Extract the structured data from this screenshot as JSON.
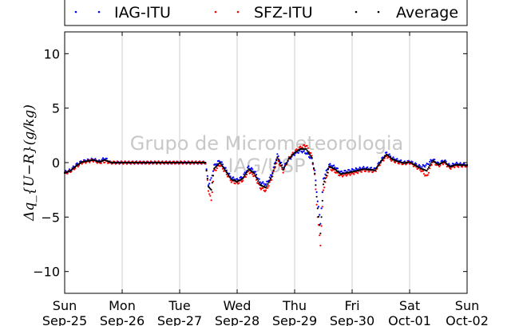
{
  "chart_data": {
    "type": "scatter",
    "ylabel": "Δq_{U−R}(g/kg)",
    "ylim": [
      -12,
      12
    ],
    "yticks": [
      -10,
      -5,
      0,
      5,
      10
    ],
    "xlim": [
      0,
      7
    ],
    "xticks": [
      {
        "day": 0,
        "weekday": "Sun",
        "date": "Sep-25"
      },
      {
        "day": 1,
        "weekday": "Mon",
        "date": "Sep-26"
      },
      {
        "day": 2,
        "weekday": "Tue",
        "date": "Sep-27"
      },
      {
        "day": 3,
        "weekday": "Wed",
        "date": "Sep-28"
      },
      {
        "day": 4,
        "weekday": "Thu",
        "date": "Sep-29"
      },
      {
        "day": 5,
        "weekday": "Fri",
        "date": "Sep-30"
      },
      {
        "day": 6,
        "weekday": "Sat",
        "date": "Oct-01"
      },
      {
        "day": 7,
        "weekday": "Sun",
        "date": "Oct-02"
      }
    ],
    "grid": "vertical",
    "legend": "top",
    "watermark": [
      "Grupo de Micrometeorologia",
      "IAG/USP"
    ],
    "series": [
      {
        "name": "IAG-ITU",
        "color": "#0000ff",
        "values": [
          [
            0.0,
            -0.9
          ],
          [
            0.1,
            -0.7
          ],
          [
            0.2,
            -0.2
          ],
          [
            0.3,
            0.1
          ],
          [
            0.4,
            0.2
          ],
          [
            0.5,
            0.3
          ],
          [
            0.6,
            0.1
          ],
          [
            0.7,
            0.4
          ],
          [
            0.8,
            0.0
          ],
          [
            0.9,
            0.0
          ],
          [
            1.5,
            0.0
          ],
          [
            2.0,
            0.0
          ],
          [
            2.45,
            0.0
          ],
          [
            2.5,
            -2.0
          ],
          [
            2.55,
            -1.5
          ],
          [
            2.6,
            -0.3
          ],
          [
            2.7,
            0.2
          ],
          [
            2.8,
            -0.6
          ],
          [
            2.9,
            -1.4
          ],
          [
            3.0,
            -1.6
          ],
          [
            3.1,
            -1.3
          ],
          [
            3.2,
            -0.4
          ],
          [
            3.3,
            -0.8
          ],
          [
            3.4,
            -1.8
          ],
          [
            3.5,
            -2.0
          ],
          [
            3.6,
            -1.1
          ],
          [
            3.7,
            0.7
          ],
          [
            3.8,
            -0.5
          ],
          [
            3.9,
            0.3
          ],
          [
            4.0,
            0.8
          ],
          [
            4.1,
            1.1
          ],
          [
            4.2,
            0.9
          ],
          [
            4.3,
            0.3
          ],
          [
            4.35,
            -0.8
          ],
          [
            4.4,
            -3.5
          ],
          [
            4.45,
            -5.5
          ],
          [
            4.5,
            -1.5
          ],
          [
            4.6,
            -0.2
          ],
          [
            4.7,
            -0.4
          ],
          [
            4.8,
            -0.9
          ],
          [
            5.0,
            -0.7
          ],
          [
            5.2,
            -0.5
          ],
          [
            5.4,
            -0.6
          ],
          [
            5.5,
            0.2
          ],
          [
            5.6,
            0.9
          ],
          [
            5.7,
            0.4
          ],
          [
            5.8,
            0.2
          ],
          [
            5.9,
            0.0
          ],
          [
            6.0,
            0.1
          ],
          [
            6.2,
            -0.4
          ],
          [
            6.3,
            -0.2
          ],
          [
            6.4,
            0.3
          ],
          [
            6.5,
            -0.1
          ],
          [
            6.6,
            0.2
          ],
          [
            6.7,
            -0.3
          ],
          [
            6.8,
            -0.1
          ],
          [
            7.0,
            -0.2
          ]
        ]
      },
      {
        "name": "SFZ-ITU",
        "color": "#ff0000",
        "values": [
          [
            0.0,
            -1.0
          ],
          [
            0.1,
            -0.8
          ],
          [
            0.2,
            -0.4
          ],
          [
            0.3,
            0.0
          ],
          [
            0.4,
            0.1
          ],
          [
            0.5,
            0.2
          ],
          [
            0.6,
            0.0
          ],
          [
            0.7,
            0.1
          ],
          [
            0.8,
            0.0
          ],
          [
            0.9,
            0.0
          ],
          [
            1.5,
            0.0
          ],
          [
            2.0,
            0.0
          ],
          [
            2.45,
            0.0
          ],
          [
            2.5,
            -2.5
          ],
          [
            2.55,
            -3.5
          ],
          [
            2.6,
            -0.8
          ],
          [
            2.7,
            -0.2
          ],
          [
            2.8,
            -0.9
          ],
          [
            2.9,
            -1.7
          ],
          [
            3.0,
            -1.9
          ],
          [
            3.1,
            -1.6
          ],
          [
            3.2,
            -0.8
          ],
          [
            3.3,
            -1.2
          ],
          [
            3.4,
            -2.3
          ],
          [
            3.5,
            -2.6
          ],
          [
            3.6,
            -1.5
          ],
          [
            3.7,
            0.3
          ],
          [
            3.8,
            -0.8
          ],
          [
            3.9,
            0.4
          ],
          [
            4.0,
            1.0
          ],
          [
            4.1,
            1.4
          ],
          [
            4.2,
            1.6
          ],
          [
            4.3,
            0.6
          ],
          [
            4.35,
            -1.2
          ],
          [
            4.4,
            -5.0
          ],
          [
            4.45,
            -7.5
          ],
          [
            4.5,
            -2.5
          ],
          [
            4.6,
            -0.5
          ],
          [
            4.7,
            -0.8
          ],
          [
            4.8,
            -1.2
          ],
          [
            5.0,
            -1.0
          ],
          [
            5.2,
            -0.7
          ],
          [
            5.4,
            -0.8
          ],
          [
            5.5,
            0.0
          ],
          [
            5.6,
            0.6
          ],
          [
            5.7,
            0.2
          ],
          [
            5.8,
            0.0
          ],
          [
            5.9,
            -0.1
          ],
          [
            6.0,
            0.0
          ],
          [
            6.2,
            -0.7
          ],
          [
            6.3,
            -1.3
          ],
          [
            6.4,
            0.1
          ],
          [
            6.5,
            -0.3
          ],
          [
            6.6,
            0.0
          ],
          [
            6.7,
            -0.5
          ],
          [
            6.8,
            -0.3
          ],
          [
            7.0,
            -0.3
          ]
        ]
      },
      {
        "name": "Average",
        "color": "#000000",
        "values": [
          [
            0.0,
            -0.95
          ],
          [
            0.1,
            -0.75
          ],
          [
            0.2,
            -0.3
          ],
          [
            0.3,
            0.05
          ],
          [
            0.4,
            0.15
          ],
          [
            0.5,
            0.25
          ],
          [
            0.6,
            0.05
          ],
          [
            0.7,
            0.25
          ],
          [
            0.8,
            0.0
          ],
          [
            0.9,
            0.0
          ],
          [
            1.2,
            0.0
          ],
          [
            1.5,
            0.0
          ],
          [
            1.8,
            0.0
          ],
          [
            2.0,
            0.0
          ],
          [
            2.2,
            0.0
          ],
          [
            2.45,
            0.0
          ],
          [
            2.5,
            -2.2
          ],
          [
            2.55,
            -2.5
          ],
          [
            2.6,
            -0.55
          ],
          [
            2.7,
            0.0
          ],
          [
            2.8,
            -0.75
          ],
          [
            2.9,
            -1.55
          ],
          [
            3.0,
            -1.75
          ],
          [
            3.1,
            -1.45
          ],
          [
            3.2,
            -0.6
          ],
          [
            3.3,
            -1.0
          ],
          [
            3.4,
            -2.05
          ],
          [
            3.5,
            -2.3
          ],
          [
            3.6,
            -1.3
          ],
          [
            3.7,
            0.5
          ],
          [
            3.8,
            -0.65
          ],
          [
            3.9,
            0.35
          ],
          [
            4.0,
            0.9
          ],
          [
            4.1,
            1.25
          ],
          [
            4.2,
            1.25
          ],
          [
            4.3,
            0.45
          ],
          [
            4.35,
            -1.0
          ],
          [
            4.4,
            -4.2
          ],
          [
            4.45,
            -6.5
          ],
          [
            4.5,
            -2.0
          ],
          [
            4.6,
            -0.35
          ],
          [
            4.7,
            -0.6
          ],
          [
            4.8,
            -1.05
          ],
          [
            5.0,
            -0.85
          ],
          [
            5.2,
            -0.6
          ],
          [
            5.4,
            -0.7
          ],
          [
            5.5,
            0.1
          ],
          [
            5.6,
            0.75
          ],
          [
            5.7,
            0.3
          ],
          [
            5.8,
            0.1
          ],
          [
            5.9,
            -0.05
          ],
          [
            6.0,
            0.05
          ],
          [
            6.2,
            -0.55
          ],
          [
            6.3,
            -0.75
          ],
          [
            6.4,
            0.2
          ],
          [
            6.5,
            -0.2
          ],
          [
            6.6,
            0.1
          ],
          [
            6.7,
            -0.4
          ],
          [
            6.8,
            -0.2
          ],
          [
            7.0,
            -0.25
          ]
        ]
      }
    ]
  }
}
